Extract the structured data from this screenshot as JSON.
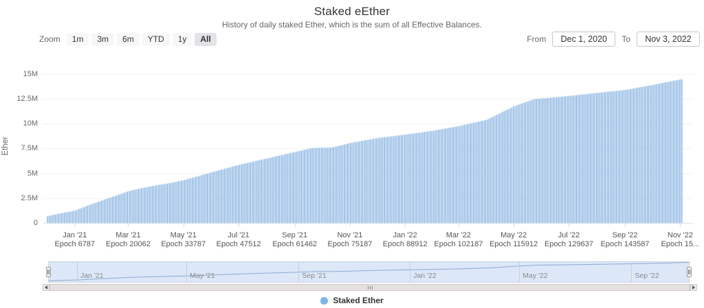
{
  "chart": {
    "title": "Staked eEther",
    "subtitle": "History of daily staked Ether, which is the sum of all Effective Balances.",
    "y_axis_title": "Ether",
    "legend": {
      "label": "Staked Ether",
      "marker_color": "#7cb5ec"
    }
  },
  "range_selector": {
    "zoom_label": "Zoom",
    "buttons": [
      "1m",
      "3m",
      "6m",
      "YTD",
      "1y",
      "All"
    ],
    "selected": "All",
    "from_label": "From",
    "from_value": "Dec 1, 2020",
    "to_label": "To",
    "to_value": "Nov 3, 2022"
  },
  "y_axis": {
    "ticks": [
      {
        "label": "0",
        "value": 0
      },
      {
        "label": "2.5M",
        "value": 2.5
      },
      {
        "label": "5M",
        "value": 5
      },
      {
        "label": "7.5M",
        "value": 7.5
      },
      {
        "label": "10M",
        "value": 10
      },
      {
        "label": "12.5M",
        "value": 12.5
      },
      {
        "label": "15M",
        "value": 15
      }
    ]
  },
  "x_axis": {
    "labels": [
      {
        "month": "Jan '21",
        "epoch": "Epoch 6787",
        "date": "2021-01-01"
      },
      {
        "month": "Mar '21",
        "epoch": "Epoch 20062",
        "date": "2021-03-01"
      },
      {
        "month": "May '21",
        "epoch": "Epoch 33787",
        "date": "2021-05-01"
      },
      {
        "month": "Jul '21",
        "epoch": "Epoch 47512",
        "date": "2021-07-01"
      },
      {
        "month": "Sep '21",
        "epoch": "Epoch 61462",
        "date": "2021-09-01"
      },
      {
        "month": "Nov '21",
        "epoch": "Epoch 75187",
        "date": "2021-11-01"
      },
      {
        "month": "Jan '22",
        "epoch": "Epoch 88912",
        "date": "2022-01-01"
      },
      {
        "month": "Mar '22",
        "epoch": "Epoch 102187",
        "date": "2022-03-01"
      },
      {
        "month": "May '22",
        "epoch": "Epoch 115912",
        "date": "2022-05-01"
      },
      {
        "month": "Jul '22",
        "epoch": "Epoch 129637",
        "date": "2022-07-01"
      },
      {
        "month": "Sep '22",
        "epoch": "Epoch 143587",
        "date": "2022-09-01"
      },
      {
        "month": "Nov '22",
        "epoch": "Epoch 15...",
        "date": "2022-11-01"
      }
    ]
  },
  "navigator": {
    "labels": [
      {
        "label": "Jan '21",
        "date": "2021-01-01"
      },
      {
        "label": "May '21",
        "date": "2021-05-01"
      },
      {
        "label": "Sep '21",
        "date": "2021-09-01"
      },
      {
        "label": "Jan '22",
        "date": "2022-01-01"
      },
      {
        "label": "May '22",
        "date": "2022-05-01"
      },
      {
        "label": "Sep '22",
        "date": "2022-09-01"
      }
    ]
  },
  "chart_data": {
    "type": "bar",
    "title": "Staked eEther",
    "subtitle": "History of daily staked Ether, which is the sum of all Effective Balances.",
    "series_name": "Staked Ether",
    "xlabel": "",
    "ylabel": "Ether",
    "unit": "millions of ETH",
    "ylim": [
      0,
      15
    ],
    "x_range": [
      "2020-12-01",
      "2022-11-03"
    ],
    "frequency": "daily (bars interpolated between anchor points below)",
    "legend_position": "bottom-center",
    "grid": true,
    "anchors": [
      [
        "2020-12-01",
        0.68
      ],
      [
        "2020-12-15",
        0.95
      ],
      [
        "2021-01-01",
        1.25
      ],
      [
        "2021-01-15",
        1.75
      ],
      [
        "2021-02-01",
        2.3
      ],
      [
        "2021-02-15",
        2.75
      ],
      [
        "2021-03-01",
        3.2
      ],
      [
        "2021-03-15",
        3.5
      ],
      [
        "2021-04-01",
        3.8
      ],
      [
        "2021-04-15",
        4.0
      ],
      [
        "2021-05-01",
        4.3
      ],
      [
        "2021-06-01",
        5.1
      ],
      [
        "2021-07-01",
        5.85
      ],
      [
        "2021-08-01",
        6.5
      ],
      [
        "2021-09-01",
        7.15
      ],
      [
        "2021-09-20",
        7.55
      ],
      [
        "2021-10-12",
        7.6
      ],
      [
        "2021-11-01",
        8.05
      ],
      [
        "2021-12-01",
        8.55
      ],
      [
        "2022-01-01",
        8.9
      ],
      [
        "2022-02-01",
        9.3
      ],
      [
        "2022-03-01",
        9.75
      ],
      [
        "2022-04-01",
        10.4
      ],
      [
        "2022-05-01",
        11.75
      ],
      [
        "2022-05-24",
        12.5
      ],
      [
        "2022-06-15",
        12.65
      ],
      [
        "2022-07-01",
        12.8
      ],
      [
        "2022-08-01",
        13.1
      ],
      [
        "2022-09-01",
        13.4
      ],
      [
        "2022-10-01",
        13.9
      ],
      [
        "2022-11-03",
        14.5
      ]
    ],
    "bar_color": "#7cb5ec",
    "navigator_line_color": "#8da9d2"
  }
}
